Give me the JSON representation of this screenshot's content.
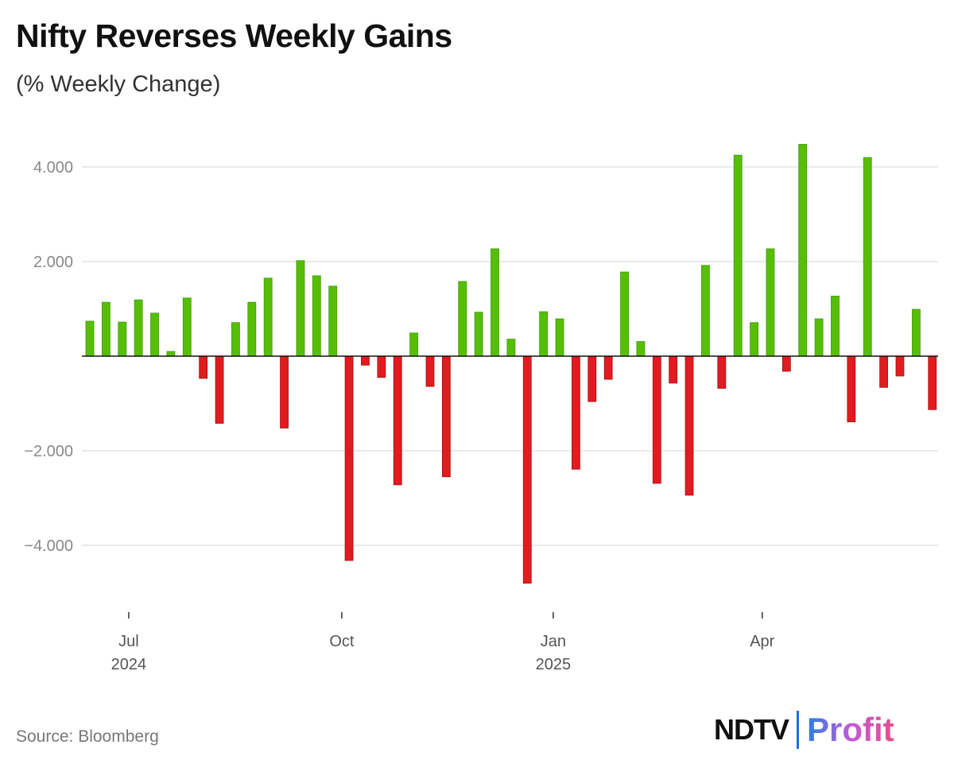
{
  "chart_data": {
    "type": "bar",
    "title": "Nifty Reverses Weekly Gains",
    "subtitle": "(% Weekly Change)",
    "ylim": [
      -5.2,
      4.8
    ],
    "yticks": [
      4,
      2,
      0,
      -2,
      -4
    ],
    "ytick_labels": [
      "4.000",
      "2.000",
      "",
      "-2.000",
      "-4.000"
    ],
    "xtick_labels": [
      {
        "label": "Jul",
        "sub": "2024"
      },
      {
        "label": "Oct",
        "sub": ""
      },
      {
        "label": "Jan",
        "sub": "2025"
      },
      {
        "label": "Apr",
        "sub": ""
      }
    ],
    "grid": true,
    "colors": {
      "positive": "#56bf05",
      "negative": "#e11b1f",
      "grid": "#dddddd",
      "axis": "#111111"
    },
    "values": [
      0.74,
      1.14,
      0.72,
      1.19,
      0.91,
      0.1,
      1.23,
      -0.47,
      -1.42,
      0.71,
      1.14,
      1.65,
      -1.52,
      2.02,
      1.7,
      1.48,
      -4.32,
      -0.19,
      -0.45,
      -2.72,
      0.49,
      -0.64,
      -2.55,
      1.58,
      0.93,
      2.27,
      0.36,
      -4.8,
      0.94,
      0.79,
      -2.39,
      -0.96,
      -0.49,
      1.78,
      0.31,
      -2.69,
      -0.57,
      -2.94,
      1.92,
      -0.68,
      4.25,
      0.71,
      2.27,
      -0.32,
      4.48,
      0.79,
      1.27,
      -1.39,
      4.2,
      -0.66,
      -0.42,
      0.99,
      -1.13
    ]
  },
  "footer": {
    "source": "Source: Bloomberg",
    "logo_left": "NDTV",
    "logo_right": "Profit"
  }
}
